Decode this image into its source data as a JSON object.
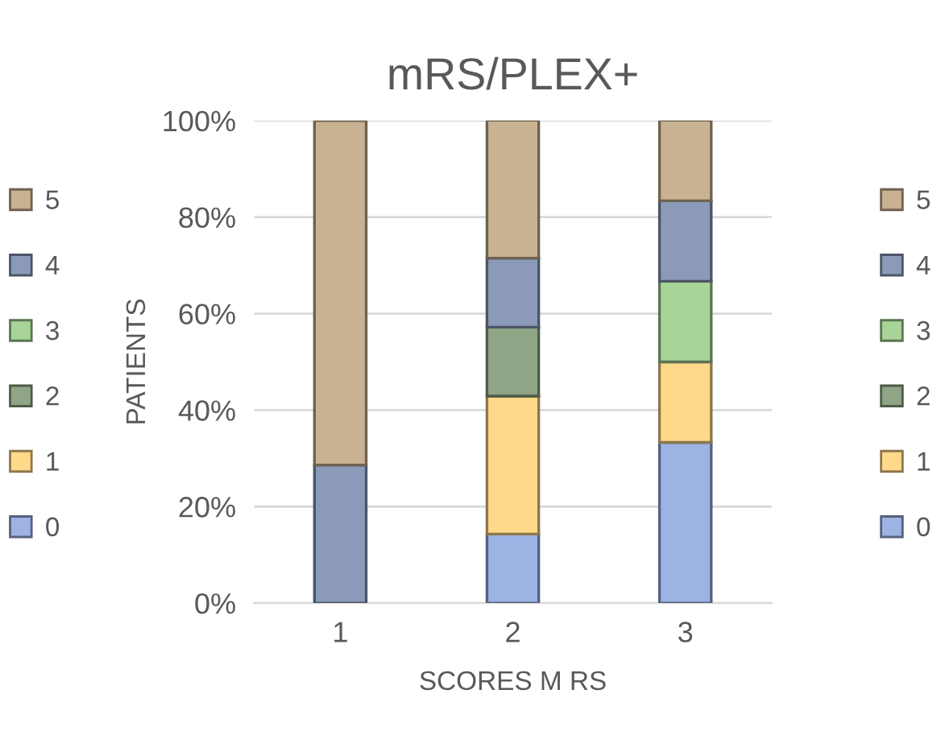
{
  "chart_data": {
    "type": "bar",
    "title": "mRS/PLEX+",
    "xlabel": "SCORES M RS",
    "ylabel": "PATIENTS",
    "stacked": true,
    "categories": [
      "1",
      "2",
      "3"
    ],
    "series": [
      {
        "name": "0",
        "color": "#9db3e3",
        "values": [
          0,
          14.3,
          33.3
        ]
      },
      {
        "name": "1",
        "color": "#ffd98a",
        "values": [
          0,
          28.6,
          16.7
        ]
      },
      {
        "name": "2",
        "color": "#8fa585",
        "values": [
          0,
          14.3,
          0
        ]
      },
      {
        "name": "3",
        "color": "#a8d498",
        "values": [
          0,
          0,
          16.7
        ]
      },
      {
        "name": "4",
        "color": "#8a9ab8",
        "values": [
          28.6,
          14.3,
          16.7
        ]
      },
      {
        "name": "5",
        "color": "#c8b292",
        "values": [
          71.4,
          28.6,
          16.7
        ]
      }
    ],
    "ylim": [
      0,
      100
    ],
    "yticks": [
      {
        "value": 0,
        "label": "0%"
      },
      {
        "value": 20,
        "label": "20%"
      },
      {
        "value": 40,
        "label": "40%"
      },
      {
        "value": 60,
        "label": "60%"
      },
      {
        "value": 80,
        "label": "80%"
      },
      {
        "value": 100,
        "label": "100%"
      }
    ],
    "grid": "y",
    "legend": "right"
  }
}
